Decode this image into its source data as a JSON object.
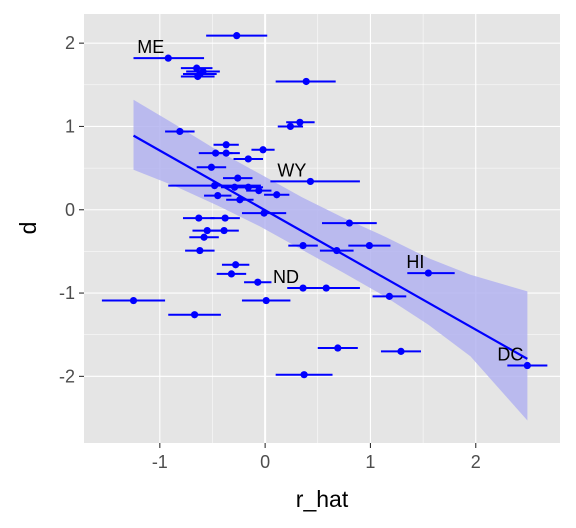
{
  "chart_data": {
    "type": "scatter",
    "title": "",
    "xlabel": "r_hat",
    "ylabel": "d",
    "xlim": [
      -1.72,
      2.8
    ],
    "ylim": [
      -2.8,
      2.35
    ],
    "x_ticks": [
      -1,
      0,
      1,
      2
    ],
    "x_tick_labels": [
      "-1",
      "0",
      "1",
      "2"
    ],
    "y_ticks": [
      -2,
      -1,
      0,
      1,
      2
    ],
    "y_tick_labels": [
      "-2",
      "-1",
      "0",
      "1",
      "2"
    ],
    "grid": true,
    "legend": "none",
    "colors": {
      "panel": "#e5e5e5",
      "grid": "#ffffff",
      "points": "#0000ff",
      "ribbon": "#b3b3f0",
      "zero_line": "#ffffff"
    },
    "points": [
      {
        "x": -0.27,
        "y": 2.09,
        "xmin": -0.56,
        "xmax": 0.02
      },
      {
        "x": -0.92,
        "y": 1.82,
        "xmin": -1.25,
        "xmax": -0.58,
        "label": "ME"
      },
      {
        "x": -0.65,
        "y": 1.7,
        "xmin": -0.8,
        "xmax": -0.5
      },
      {
        "x": -0.59,
        "y": 1.66,
        "xmin": -0.75,
        "xmax": -0.43
      },
      {
        "x": -0.62,
        "y": 1.63,
        "xmin": -0.78,
        "xmax": -0.46
      },
      {
        "x": -0.64,
        "y": 1.6,
        "xmin": -0.8,
        "xmax": -0.48
      },
      {
        "x": 0.39,
        "y": 1.54,
        "xmin": 0.1,
        "xmax": 0.67
      },
      {
        "x": 0.33,
        "y": 1.05,
        "xmin": 0.2,
        "xmax": 0.47
      },
      {
        "x": 0.24,
        "y": 1.0,
        "xmin": 0.12,
        "xmax": 0.36
      },
      {
        "x": -0.81,
        "y": 0.94,
        "xmin": -0.95,
        "xmax": -0.67
      },
      {
        "x": -0.37,
        "y": 0.78,
        "xmin": -0.49,
        "xmax": -0.25
      },
      {
        "x": -0.02,
        "y": 0.72,
        "xmin": -0.13,
        "xmax": 0.09
      },
      {
        "x": -0.47,
        "y": 0.68,
        "xmin": -0.63,
        "xmax": -0.31
      },
      {
        "x": -0.37,
        "y": 0.68,
        "xmin": -0.5,
        "xmax": -0.24
      },
      {
        "x": -0.16,
        "y": 0.61,
        "xmin": -0.3,
        "xmax": -0.02
      },
      {
        "x": -0.51,
        "y": 0.51,
        "xmin": -0.65,
        "xmax": -0.37
      },
      {
        "x": -0.26,
        "y": 0.38,
        "xmin": -0.4,
        "xmax": -0.12
      },
      {
        "x": 0.43,
        "y": 0.34,
        "xmin": 0.05,
        "xmax": 0.9,
        "label": "WY"
      },
      {
        "x": -0.48,
        "y": 0.29,
        "xmin": -0.92,
        "xmax": -0.04
      },
      {
        "x": -0.29,
        "y": 0.27,
        "xmin": -0.42,
        "xmax": -0.16
      },
      {
        "x": -0.16,
        "y": 0.27,
        "xmin": -0.3,
        "xmax": -0.02
      },
      {
        "x": -0.06,
        "y": 0.23,
        "xmin": -0.18,
        "xmax": 0.06
      },
      {
        "x": -0.45,
        "y": 0.17,
        "xmin": -0.58,
        "xmax": -0.32
      },
      {
        "x": 0.11,
        "y": 0.18,
        "xmin": -0.01,
        "xmax": 0.23
      },
      {
        "x": -0.24,
        "y": 0.12,
        "xmin": -0.37,
        "xmax": -0.11
      },
      {
        "x": -0.01,
        "y": -0.04,
        "xmin": -0.22,
        "xmax": 0.2
      },
      {
        "x": -0.63,
        "y": -0.1,
        "xmin": -0.78,
        "xmax": -0.48
      },
      {
        "x": -0.38,
        "y": -0.1,
        "xmin": -0.52,
        "xmax": -0.24
      },
      {
        "x": 0.8,
        "y": -0.16,
        "xmin": 0.54,
        "xmax": 1.06
      },
      {
        "x": -0.55,
        "y": -0.25,
        "xmin": -0.69,
        "xmax": -0.41
      },
      {
        "x": -0.39,
        "y": -0.25,
        "xmin": -0.53,
        "xmax": -0.25
      },
      {
        "x": -0.58,
        "y": -0.33,
        "xmin": -0.72,
        "xmax": -0.44
      },
      {
        "x": 0.36,
        "y": -0.43,
        "xmin": 0.22,
        "xmax": 0.5
      },
      {
        "x": 0.99,
        "y": -0.43,
        "xmin": 0.79,
        "xmax": 1.19
      },
      {
        "x": -0.62,
        "y": -0.49,
        "xmin": -0.76,
        "xmax": -0.48
      },
      {
        "x": 0.68,
        "y": -0.49,
        "xmin": 0.52,
        "xmax": 0.84
      },
      {
        "x": -0.28,
        "y": -0.66,
        "xmin": -0.41,
        "xmax": -0.15
      },
      {
        "x": 1.55,
        "y": -0.76,
        "xmin": 1.35,
        "xmax": 1.8,
        "label": "HI"
      },
      {
        "x": -0.32,
        "y": -0.77,
        "xmin": -0.46,
        "xmax": -0.18
      },
      {
        "x": -0.07,
        "y": -0.87,
        "xmin": -0.2,
        "xmax": 0.06
      },
      {
        "x": 0.36,
        "y": -0.94,
        "xmin": 0.21,
        "xmax": 0.51,
        "label": "ND"
      },
      {
        "x": 0.58,
        "y": -0.94,
        "xmin": 0.26,
        "xmax": 0.9
      },
      {
        "x": -1.25,
        "y": -1.09,
        "xmin": -1.55,
        "xmax": -0.95
      },
      {
        "x": 0.01,
        "y": -1.09,
        "xmin": -0.22,
        "xmax": 0.24
      },
      {
        "x": 1.18,
        "y": -1.04,
        "xmin": 1.02,
        "xmax": 1.34
      },
      {
        "x": -0.67,
        "y": -1.26,
        "xmin": -0.92,
        "xmax": -0.42
      },
      {
        "x": 0.69,
        "y": -1.66,
        "xmin": 0.5,
        "xmax": 0.88
      },
      {
        "x": 1.29,
        "y": -1.7,
        "xmin": 1.1,
        "xmax": 1.48
      },
      {
        "x": 2.49,
        "y": -1.87,
        "xmin": 2.3,
        "xmax": 2.68,
        "label": "DC"
      },
      {
        "x": 0.37,
        "y": -1.98,
        "xmin": 0.1,
        "xmax": 0.64
      }
    ],
    "fit_line": {
      "x": [
        -1.25,
        2.49
      ],
      "y": [
        0.89,
        -1.79
      ]
    },
    "ribbon": {
      "x": [
        -1.25,
        -0.85,
        -0.45,
        -0.05,
        0.35,
        0.75,
        1.15,
        1.55,
        1.95,
        2.49
      ],
      "ymin": [
        0.48,
        0.28,
        0.05,
        -0.2,
        -0.48,
        -0.76,
        -1.05,
        -1.38,
        -1.76,
        -2.53
      ],
      "ymax": [
        1.32,
        1.02,
        0.71,
        0.43,
        0.15,
        -0.1,
        -0.33,
        -0.58,
        -0.78,
        -0.98
      ]
    }
  }
}
